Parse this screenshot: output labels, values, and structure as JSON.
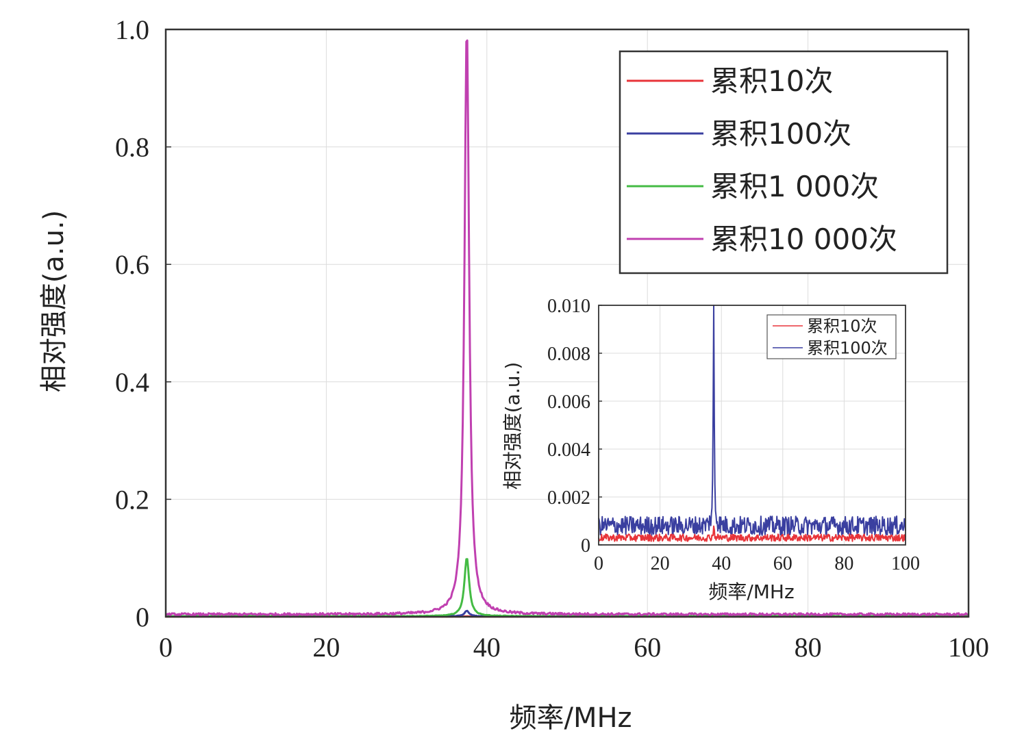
{
  "chart_data": [
    {
      "type": "line",
      "xlabel": "频率/MHz",
      "ylabel": "相对强度(a.u.)",
      "xlim": [
        0,
        100
      ],
      "ylim": [
        0,
        1.0
      ],
      "xticks": [
        "0",
        "20",
        "40",
        "60",
        "80",
        "100"
      ],
      "yticks": [
        "0",
        "0.2",
        "0.4",
        "0.6",
        "0.8",
        "1.0"
      ],
      "grid": true,
      "legend_position": "top-right",
      "peak_frequency": 37.5,
      "series": [
        {
          "name": "累积10次",
          "color": "#e8343a",
          "peak": 0.0005,
          "noise": 0.0003
        },
        {
          "name": "累积100次",
          "color": "#3a3fa0",
          "peak": 0.0095,
          "noise": 0.0008
        },
        {
          "name": "累积1 000次",
          "color": "#44bb44",
          "peak": 0.1,
          "noise": 0.001
        },
        {
          "name": "累积10 000次",
          "color": "#c040b0",
          "peak": 1.0,
          "noise": 0.004
        }
      ]
    },
    {
      "type": "line",
      "xlabel": "频率/MHz",
      "ylabel": "相对强度(a.u.)",
      "xlim": [
        0,
        100
      ],
      "ylim": [
        0,
        0.01
      ],
      "xticks": [
        "0",
        "20",
        "40",
        "60",
        "80",
        "100"
      ],
      "yticks": [
        "0",
        "0.002",
        "0.004",
        "0.006",
        "0.008",
        "0.010"
      ],
      "grid": true,
      "legend_position": "top-right",
      "peak_frequency": 37.5,
      "series": [
        {
          "name": "累积10次",
          "color": "#e8343a",
          "peak": 0.0005,
          "noise": 0.0003
        },
        {
          "name": "累积100次",
          "color": "#3a3fa0",
          "peak": 0.0095,
          "noise": 0.0008
        }
      ]
    }
  ]
}
